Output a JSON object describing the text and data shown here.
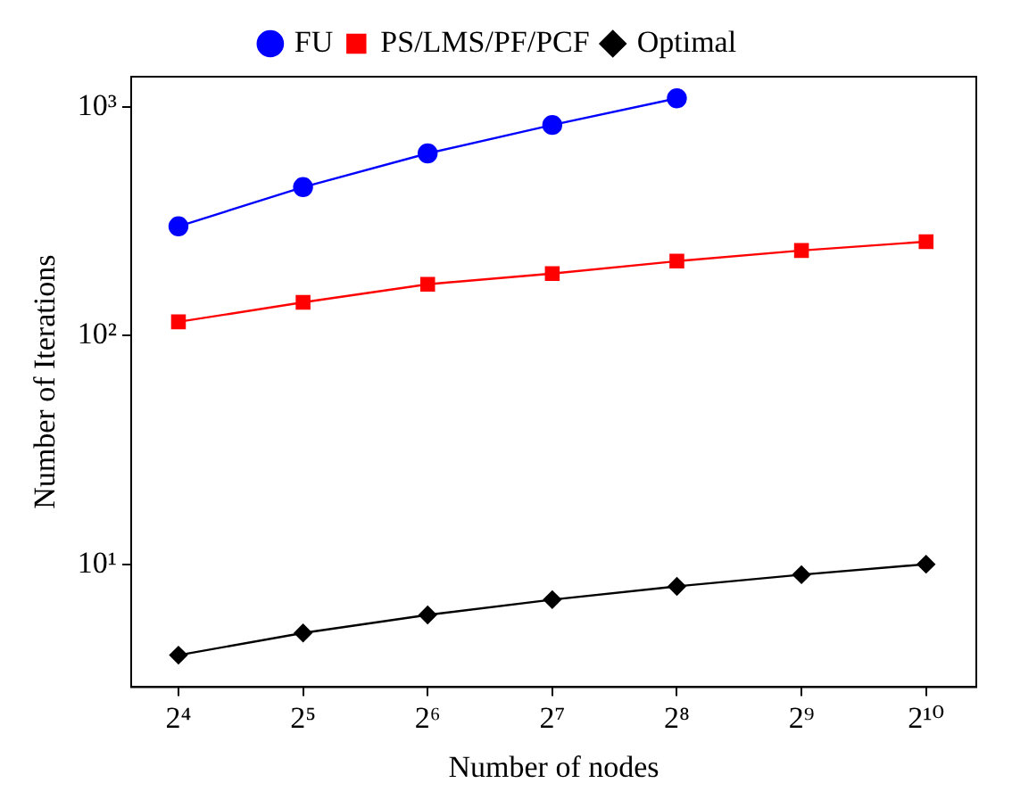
{
  "chart_data": {
    "type": "line",
    "xlabel": "Number of nodes",
    "ylabel": "Number of Iterations",
    "log": "xy",
    "grid": false,
    "legend": "top",
    "line_style": "solid",
    "x": [
      16,
      32,
      64,
      128,
      256,
      512,
      1024
    ],
    "xlim": [
      12.3,
      1354
    ],
    "ylim": [
      2.9,
      1360
    ],
    "xticks": [
      {
        "value": 16,
        "label": "2⁴"
      },
      {
        "value": 32,
        "label": "2⁵"
      },
      {
        "value": 64,
        "label": "2⁶"
      },
      {
        "value": 128,
        "label": "2⁷"
      },
      {
        "value": 256,
        "label": "2⁸"
      },
      {
        "value": 512,
        "label": "2⁹"
      },
      {
        "value": 1024,
        "label": "2¹⁰"
      }
    ],
    "yticks": [
      {
        "value": 10,
        "label": "10¹"
      },
      {
        "value": 100,
        "label": "10²"
      },
      {
        "value": 1000,
        "label": "10³"
      }
    ],
    "series": [
      {
        "name": "FU",
        "color": "#0000ff",
        "marker": "circle",
        "values": [
          301,
          447,
          628,
          836,
          1094,
          null,
          null
        ]
      },
      {
        "name": "PS/LMS/PF/PCF",
        "color": "#ff0000",
        "marker": "square",
        "values": [
          115,
          140,
          168,
          187,
          212,
          236,
          258
        ]
      },
      {
        "name": "Optimal",
        "color": "#000000",
        "marker": "diamond",
        "values": [
          4,
          5,
          6,
          7,
          8,
          9,
          10
        ]
      }
    ]
  }
}
